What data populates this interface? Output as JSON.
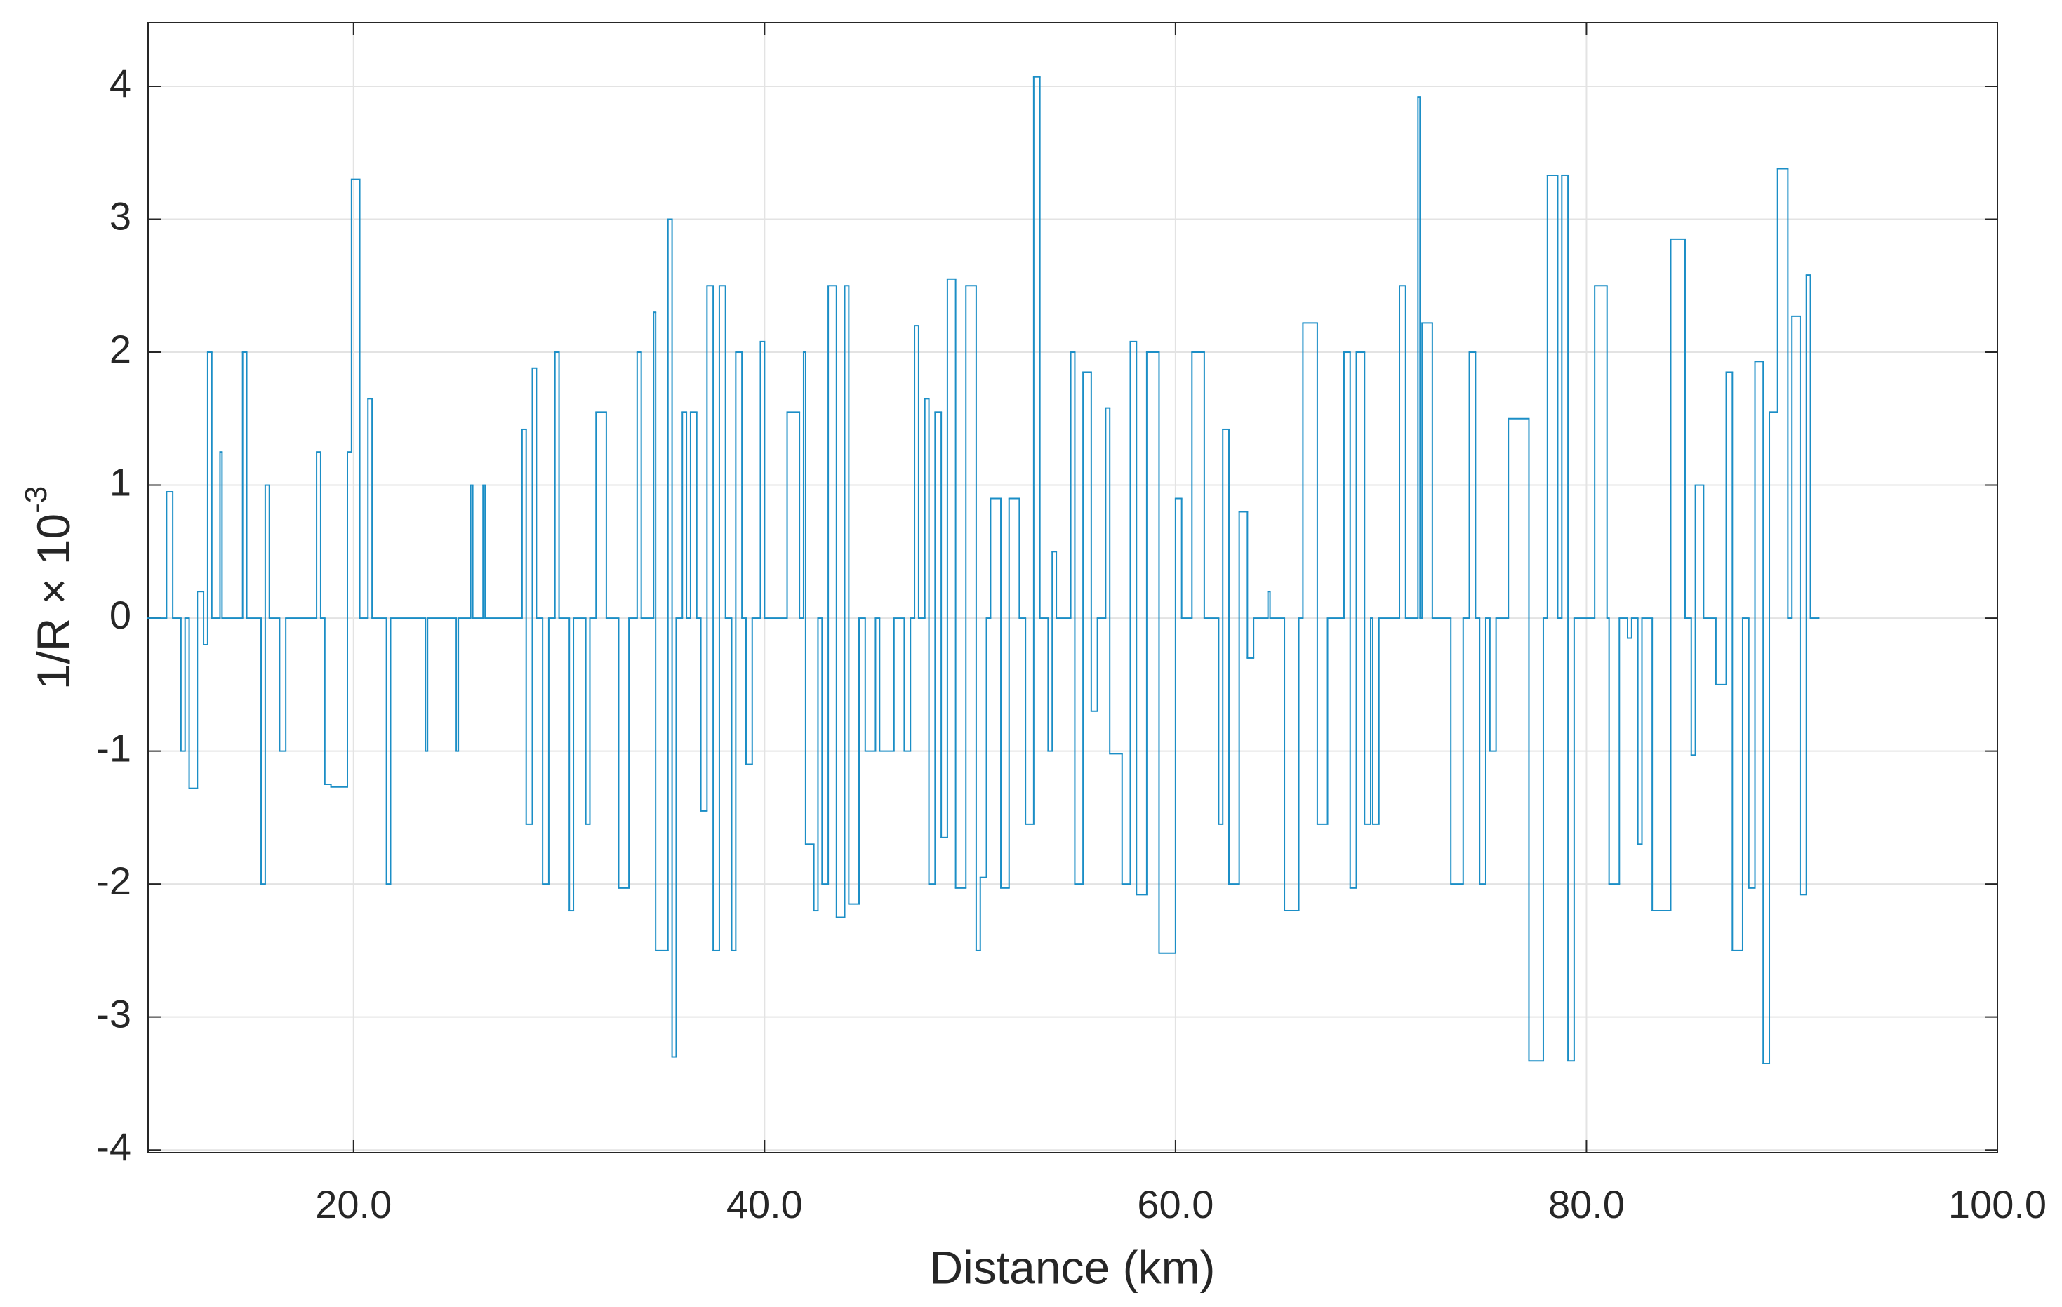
{
  "chart_data": {
    "type": "line",
    "drawstyle": "steps-post",
    "xlabel": "Distance (km)",
    "ylabel": "1/R × 10",
    "ylabel_exponent": "-3",
    "xlim": [
      10,
      100
    ],
    "ylim": [
      -4.02,
      4.48
    ],
    "xticks": [
      {
        "value": 20,
        "label": "20.0"
      },
      {
        "value": 40,
        "label": "40.0"
      },
      {
        "value": 60,
        "label": "60.0"
      },
      {
        "value": 80,
        "label": "80.0"
      },
      {
        "value": 100,
        "label": "100.0"
      }
    ],
    "yticks": [
      -4,
      -3,
      -2,
      -1,
      0,
      1,
      2,
      3,
      4
    ],
    "grid": true,
    "color": "#1b8ec6",
    "x": [
      10,
      10.9,
      11.2,
      11.6,
      11.8,
      12,
      12.4,
      12.7,
      12.9,
      13.1,
      13.5,
      13.6,
      14.6,
      14.8,
      15.5,
      15.7,
      15.9,
      16.4,
      16.7,
      18.2,
      18.4,
      18.6,
      18.9,
      19.7,
      19.9,
      20.3,
      20.7,
      20.9,
      21.6,
      21.8,
      23.5,
      23.6,
      25,
      25.1,
      25.7,
      25.8,
      26.3,
      26.4,
      28.2,
      28.4,
      28.7,
      28.9,
      29.2,
      29.5,
      29.8,
      30,
      30.5,
      30.7,
      31.3,
      31.5,
      31.8,
      32.3,
      32.9,
      33.4,
      33.8,
      34,
      34.6,
      34.7,
      35.3,
      35.5,
      35.7,
      36,
      36.2,
      36.4,
      36.7,
      36.9,
      37.2,
      37.5,
      37.8,
      38.1,
      38.4,
      38.6,
      38.9,
      39.1,
      39.4,
      39.8,
      40,
      41.1,
      41.7,
      41.9,
      42,
      42.4,
      42.6,
      42.8,
      43.1,
      43.5,
      43.9,
      44.1,
      44.6,
      44.9,
      45.4,
      45.6,
      46.3,
      46.8,
      47.1,
      47.3,
      47.5,
      47.8,
      48,
      48.3,
      48.6,
      48.9,
      49.3,
      49.8,
      50.3,
      50.5,
      50.8,
      51,
      51.5,
      51.9,
      52.4,
      52.7,
      53.1,
      53.4,
      53.8,
      54,
      54.2,
      54.9,
      55.1,
      55.5,
      55.9,
      56.2,
      56.6,
      56.8,
      57.4,
      57.8,
      58.1,
      58.6,
      59.2,
      60,
      60.3,
      60.8,
      61.4,
      62.1,
      62.3,
      62.6,
      63.1,
      63.5,
      63.8,
      64.5,
      64.6,
      65.3,
      66,
      66.2,
      66.9,
      67.4,
      68.2,
      68.5,
      68.8,
      69.2,
      69.5,
      69.6,
      69.9,
      70.9,
      71.2,
      71.8,
      71.9,
      72,
      72.5,
      73.4,
      74,
      74.3,
      74.6,
      74.8,
      75.1,
      75.3,
      75.6,
      76.2,
      77.2,
      77.9,
      78.1,
      78.6,
      78.8,
      79.1,
      79.4,
      80.4,
      81,
      81.1,
      81.6,
      82,
      82.2,
      82.5,
      82.7,
      83.2,
      84.1,
      84.8,
      85.1,
      85.3,
      85.7,
      86.3,
      86.8,
      87.1,
      87.6,
      87.9,
      88.2,
      88.6,
      88.9,
      89.3,
      89.8,
      90,
      90.4,
      90.7,
      90.9,
      91.3
    ],
    "values": [
      0,
      0.95,
      0,
      -1,
      0,
      -1.28,
      0.2,
      -0.2,
      2,
      0,
      1.25,
      0,
      2,
      0,
      -2,
      1,
      0,
      -1,
      0,
      1.25,
      0,
      -1.25,
      -1.27,
      1.25,
      3.3,
      0,
      1.65,
      0,
      -2,
      0,
      -1,
      0,
      -1,
      0,
      1,
      0,
      1,
      0,
      1.42,
      -1.55,
      1.88,
      0,
      -2,
      0,
      2,
      0,
      -2.2,
      0,
      -1.55,
      0,
      1.55,
      0,
      -2.03,
      0,
      2,
      0,
      2.3,
      -2.5,
      3,
      -3.3,
      0,
      1.55,
      0,
      1.55,
      0,
      -1.45,
      2.5,
      -2.5,
      2.5,
      0,
      -2.5,
      2,
      0,
      -1.1,
      0,
      2.08,
      0,
      1.55,
      0,
      2,
      -1.7,
      -2.2,
      0,
      -2,
      2.5,
      -2.25,
      2.5,
      -2.15,
      0,
      -1,
      0,
      -1,
      0,
      -1,
      0,
      2.2,
      0,
      1.65,
      -2,
      1.55,
      -1.65,
      2.55,
      -2.03,
      2.5,
      -2.5,
      -1.95,
      0,
      0.9,
      -2.03,
      0.9,
      0,
      -1.55,
      4.07,
      0,
      -1,
      0.5,
      0,
      2,
      -2,
      1.85,
      -0.7,
      0,
      1.58,
      -1.02,
      -2,
      2.08,
      -2.08,
      2,
      -2.52,
      0.9,
      0,
      2,
      0,
      -1.55,
      1.42,
      -2,
      0.8,
      -0.3,
      0,
      0.2,
      0,
      -2.2,
      0,
      2.22,
      -1.55,
      0,
      2,
      -2.03,
      2,
      -1.55,
      0,
      -1.55,
      0,
      2.5,
      0,
      3.92,
      0,
      2.22,
      0,
      -2,
      0,
      2,
      0,
      -2,
      0,
      -1,
      0,
      1.5,
      -3.33,
      0,
      3.33,
      0,
      3.33,
      -3.33,
      0,
      2.5,
      0,
      -2,
      0,
      -0.15,
      0,
      -1.7,
      0,
      -2.2,
      2.85,
      0,
      -1.03,
      1,
      0,
      -0.5,
      1.85,
      -2.5,
      0,
      -2.03,
      1.93,
      -3.35,
      1.55,
      3.38,
      0,
      2.27,
      -2.08,
      2.58,
      0,
      0
    ]
  }
}
